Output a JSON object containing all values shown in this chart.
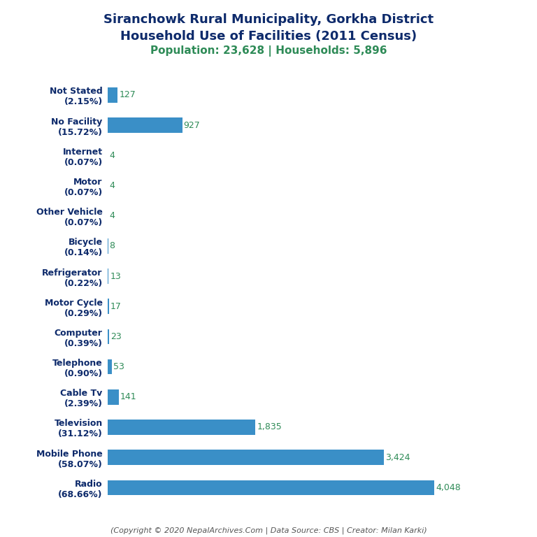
{
  "title_line1": "Siranchowk Rural Municipality, Gorkha District",
  "title_line2": "Household Use of Facilities (2011 Census)",
  "subtitle": "Population: 23,628 | Households: 5,896",
  "footer": "(Copyright © 2020 NepalArchives.Com | Data Source: CBS | Creator: Milan Karki)",
  "categories": [
    "Not Stated\n(2.15%)",
    "No Facility\n(15.72%)",
    "Internet\n(0.07%)",
    "Motor\n(0.07%)",
    "Other Vehicle\n(0.07%)",
    "Bicycle\n(0.14%)",
    "Refrigerator\n(0.22%)",
    "Motor Cycle\n(0.29%)",
    "Computer\n(0.39%)",
    "Telephone\n(0.90%)",
    "Cable Tv\n(2.39%)",
    "Television\n(31.12%)",
    "Mobile Phone\n(58.07%)",
    "Radio\n(68.66%)"
  ],
  "values": [
    127,
    927,
    4,
    4,
    4,
    8,
    13,
    17,
    23,
    53,
    141,
    1835,
    3424,
    4048
  ],
  "bar_color": "#3a8fc7",
  "value_color": "#2e8b57",
  "title_color": "#0d2a6b",
  "subtitle_color": "#2e8b57",
  "footer_color": "#555555",
  "background_color": "#ffffff",
  "title_fontsize": 13,
  "subtitle_fontsize": 11,
  "label_fontsize": 9,
  "value_fontsize": 9,
  "footer_fontsize": 8,
  "bar_height": 0.5
}
